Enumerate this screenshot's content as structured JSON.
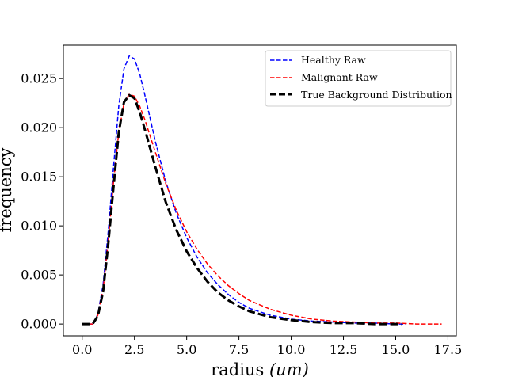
{
  "chart_data": {
    "type": "line",
    "xlabel_main": "radius ",
    "xlabel_unit": "(um)",
    "ylabel": "frequency",
    "xlim": [
      -0.9,
      17.9
    ],
    "ylim": [
      -0.0012,
      0.0284
    ],
    "xticks": [
      0.0,
      2.5,
      5.0,
      7.5,
      10.0,
      12.5,
      15.0,
      17.5
    ],
    "xtick_labels": [
      "0.0",
      "2.5",
      "5.0",
      "7.5",
      "10.0",
      "12.5",
      "15.0",
      "17.5"
    ],
    "yticks": [
      0.0,
      0.005,
      0.01,
      0.015,
      0.02,
      0.025
    ],
    "ytick_labels": [
      "0.000",
      "0.005",
      "0.010",
      "0.015",
      "0.020",
      "0.025"
    ],
    "legend_position": "top-right",
    "series": [
      {
        "name": "Healthy Raw",
        "color": "#0000ff",
        "style": "dashed",
        "x": [
          0.0,
          0.5,
          0.75,
          1.0,
          1.25,
          1.5,
          1.75,
          2.0,
          2.25,
          2.5,
          2.75,
          3.0,
          3.5,
          4.0,
          4.5,
          5.0,
          5.5,
          6.0,
          6.5,
          7.0,
          7.5,
          8.0,
          9.0,
          10.0,
          11.0,
          12.0,
          13.0,
          14.0,
          15.0,
          15.5
        ],
        "y": [
          0.0,
          0.0,
          0.001,
          0.004,
          0.0095,
          0.016,
          0.0222,
          0.026,
          0.0273,
          0.027,
          0.0255,
          0.0233,
          0.0186,
          0.0145,
          0.0113,
          0.0088,
          0.0068,
          0.0052,
          0.004,
          0.003,
          0.0022,
          0.0016,
          0.0009,
          0.0005,
          0.0003,
          0.0002,
          0.0001,
          0.0001,
          0.0,
          0.0
        ]
      },
      {
        "name": "Malignant Raw",
        "color": "#ff0000",
        "style": "dashed",
        "x": [
          0.0,
          0.5,
          0.75,
          1.0,
          1.25,
          1.5,
          1.75,
          2.0,
          2.25,
          2.5,
          2.75,
          3.0,
          3.5,
          4.0,
          4.5,
          5.0,
          5.5,
          6.0,
          6.5,
          7.0,
          7.5,
          8.0,
          9.0,
          10.0,
          11.0,
          12.0,
          13.0,
          14.0,
          15.0,
          16.0,
          17.2
        ],
        "y": [
          0.0,
          0.0,
          0.0009,
          0.0035,
          0.0085,
          0.0145,
          0.0195,
          0.0225,
          0.0234,
          0.0232,
          0.0222,
          0.0208,
          0.0175,
          0.0143,
          0.0116,
          0.0094,
          0.0076,
          0.0061,
          0.0049,
          0.0039,
          0.0031,
          0.0024,
          0.0015,
          0.0009,
          0.0005,
          0.0003,
          0.0002,
          0.0001,
          0.0001,
          0.0,
          0.0
        ]
      },
      {
        "name": "True Background Distribution",
        "color": "#000000",
        "style": "thick-dashed",
        "x": [
          0.0,
          0.5,
          0.75,
          1.0,
          1.25,
          1.5,
          1.75,
          2.0,
          2.25,
          2.5,
          2.75,
          3.0,
          3.5,
          4.0,
          4.5,
          5.0,
          5.5,
          6.0,
          6.5,
          7.0,
          7.5,
          8.0,
          9.0,
          10.0,
          11.0,
          12.0,
          13.0,
          14.0,
          15.0,
          15.3
        ],
        "y": [
          0.0,
          0.0,
          0.0008,
          0.0033,
          0.0082,
          0.014,
          0.0195,
          0.0226,
          0.0233,
          0.023,
          0.0216,
          0.0198,
          0.016,
          0.0124,
          0.0096,
          0.0074,
          0.0057,
          0.0043,
          0.0032,
          0.0024,
          0.0018,
          0.0013,
          0.0007,
          0.0004,
          0.0002,
          0.0001,
          0.0001,
          0.0,
          0.0,
          0.0
        ]
      }
    ]
  }
}
